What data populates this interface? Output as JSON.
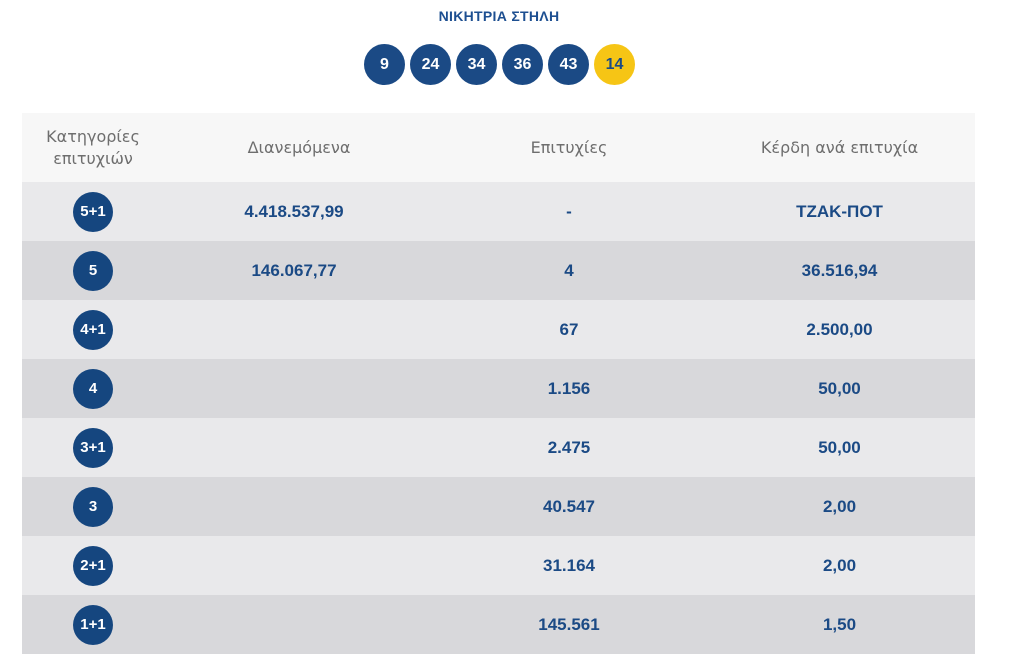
{
  "winning": {
    "title": "ΝΙΚΗΤΡΙΑ ΣΤΗΛΗ",
    "numbers": [
      "9",
      "24",
      "34",
      "36",
      "43"
    ],
    "bonus": "14"
  },
  "table": {
    "headers": {
      "category": "Κατηγορίες επιτυχιών",
      "distributed": "Διανεμόμενα",
      "winners": "Επιτυχίες",
      "prize": "Κέρδη ανά επιτυχία"
    },
    "rows": [
      {
        "category": "5+1",
        "distributed": "4.418.537,99",
        "winners": "-",
        "prize": "ΤΖΑΚ-ΠΟΤ"
      },
      {
        "category": "5",
        "distributed": "146.067,77",
        "winners": "4",
        "prize": "36.516,94"
      },
      {
        "category": "4+1",
        "distributed": "",
        "winners": "67",
        "prize": "2.500,00"
      },
      {
        "category": "4",
        "distributed": "",
        "winners": "1.156",
        "prize": "50,00"
      },
      {
        "category": "3+1",
        "distributed": "",
        "winners": "2.475",
        "prize": "50,00"
      },
      {
        "category": "3",
        "distributed": "",
        "winners": "40.547",
        "prize": "2,00"
      },
      {
        "category": "2+1",
        "distributed": "",
        "winners": "31.164",
        "prize": "2,00"
      },
      {
        "category": "1+1",
        "distributed": "",
        "winners": "145.561",
        "prize": "1,50"
      }
    ]
  },
  "colors": {
    "ball_blue": "#1b4a85",
    "bonus_yellow": "#f6c515",
    "row_light": "#e9e9eb",
    "row_dark": "#d8d8db",
    "header_bg": "#f7f7f7"
  }
}
